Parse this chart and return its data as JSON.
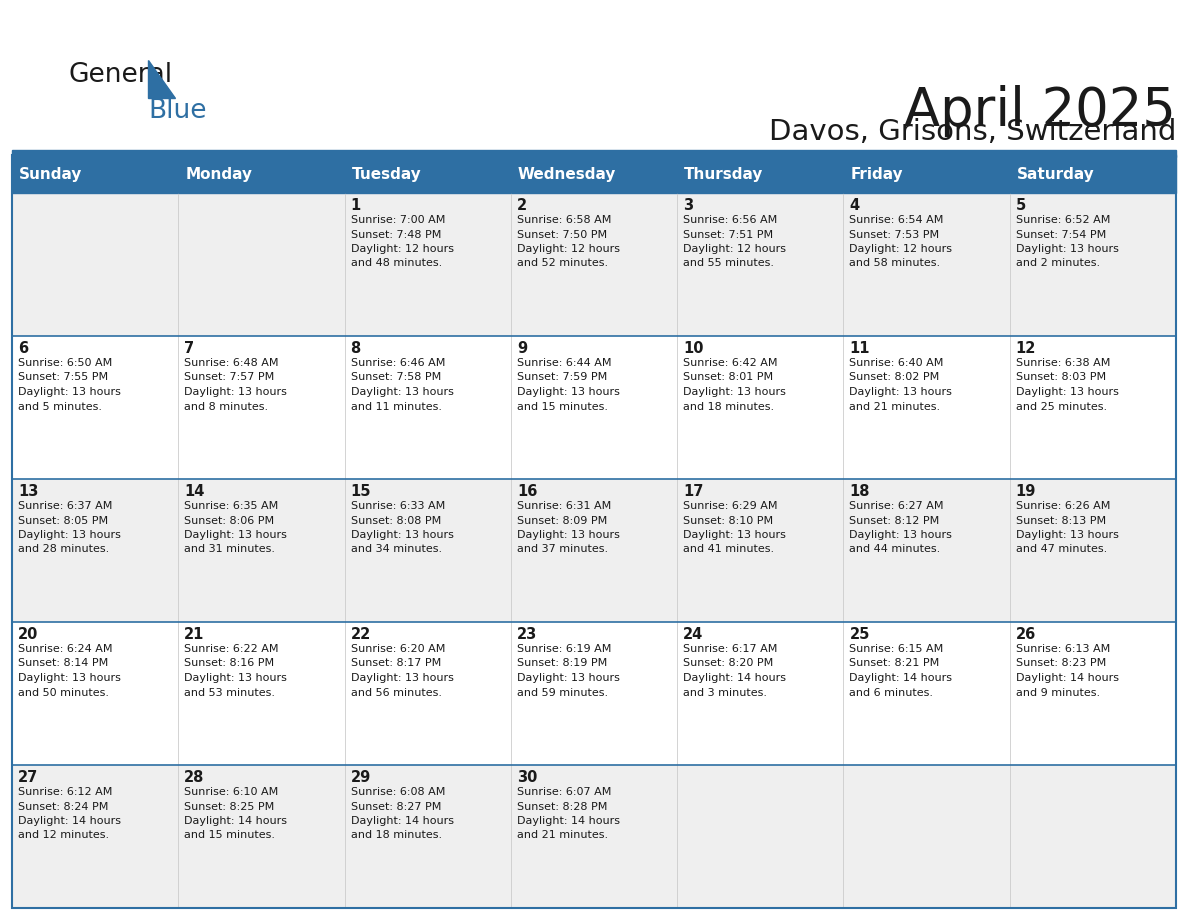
{
  "title": "April 2025",
  "subtitle": "Davos, Grisons, Switzerland",
  "header_bg_color": "#2E6FA3",
  "header_text_color": "#FFFFFF",
  "cell_bg_odd": "#EFEFEF",
  "cell_bg_even": "#FFFFFF",
  "border_color": "#2E6FA3",
  "text_color": "#1a1a1a",
  "day_headers": [
    "Sunday",
    "Monday",
    "Tuesday",
    "Wednesday",
    "Thursday",
    "Friday",
    "Saturday"
  ],
  "days": [
    {
      "day": "",
      "col": 0,
      "row": 0,
      "lines": []
    },
    {
      "day": "",
      "col": 1,
      "row": 0,
      "lines": []
    },
    {
      "day": "1",
      "col": 2,
      "row": 0,
      "lines": [
        "Sunrise: 7:00 AM",
        "Sunset: 7:48 PM",
        "Daylight: 12 hours",
        "and 48 minutes."
      ]
    },
    {
      "day": "2",
      "col": 3,
      "row": 0,
      "lines": [
        "Sunrise: 6:58 AM",
        "Sunset: 7:50 PM",
        "Daylight: 12 hours",
        "and 52 minutes."
      ]
    },
    {
      "day": "3",
      "col": 4,
      "row": 0,
      "lines": [
        "Sunrise: 6:56 AM",
        "Sunset: 7:51 PM",
        "Daylight: 12 hours",
        "and 55 minutes."
      ]
    },
    {
      "day": "4",
      "col": 5,
      "row": 0,
      "lines": [
        "Sunrise: 6:54 AM",
        "Sunset: 7:53 PM",
        "Daylight: 12 hours",
        "and 58 minutes."
      ]
    },
    {
      "day": "5",
      "col": 6,
      "row": 0,
      "lines": [
        "Sunrise: 6:52 AM",
        "Sunset: 7:54 PM",
        "Daylight: 13 hours",
        "and 2 minutes."
      ]
    },
    {
      "day": "6",
      "col": 0,
      "row": 1,
      "lines": [
        "Sunrise: 6:50 AM",
        "Sunset: 7:55 PM",
        "Daylight: 13 hours",
        "and 5 minutes."
      ]
    },
    {
      "day": "7",
      "col": 1,
      "row": 1,
      "lines": [
        "Sunrise: 6:48 AM",
        "Sunset: 7:57 PM",
        "Daylight: 13 hours",
        "and 8 minutes."
      ]
    },
    {
      "day": "8",
      "col": 2,
      "row": 1,
      "lines": [
        "Sunrise: 6:46 AM",
        "Sunset: 7:58 PM",
        "Daylight: 13 hours",
        "and 11 minutes."
      ]
    },
    {
      "day": "9",
      "col": 3,
      "row": 1,
      "lines": [
        "Sunrise: 6:44 AM",
        "Sunset: 7:59 PM",
        "Daylight: 13 hours",
        "and 15 minutes."
      ]
    },
    {
      "day": "10",
      "col": 4,
      "row": 1,
      "lines": [
        "Sunrise: 6:42 AM",
        "Sunset: 8:01 PM",
        "Daylight: 13 hours",
        "and 18 minutes."
      ]
    },
    {
      "day": "11",
      "col": 5,
      "row": 1,
      "lines": [
        "Sunrise: 6:40 AM",
        "Sunset: 8:02 PM",
        "Daylight: 13 hours",
        "and 21 minutes."
      ]
    },
    {
      "day": "12",
      "col": 6,
      "row": 1,
      "lines": [
        "Sunrise: 6:38 AM",
        "Sunset: 8:03 PM",
        "Daylight: 13 hours",
        "and 25 minutes."
      ]
    },
    {
      "day": "13",
      "col": 0,
      "row": 2,
      "lines": [
        "Sunrise: 6:37 AM",
        "Sunset: 8:05 PM",
        "Daylight: 13 hours",
        "and 28 minutes."
      ]
    },
    {
      "day": "14",
      "col": 1,
      "row": 2,
      "lines": [
        "Sunrise: 6:35 AM",
        "Sunset: 8:06 PM",
        "Daylight: 13 hours",
        "and 31 minutes."
      ]
    },
    {
      "day": "15",
      "col": 2,
      "row": 2,
      "lines": [
        "Sunrise: 6:33 AM",
        "Sunset: 8:08 PM",
        "Daylight: 13 hours",
        "and 34 minutes."
      ]
    },
    {
      "day": "16",
      "col": 3,
      "row": 2,
      "lines": [
        "Sunrise: 6:31 AM",
        "Sunset: 8:09 PM",
        "Daylight: 13 hours",
        "and 37 minutes."
      ]
    },
    {
      "day": "17",
      "col": 4,
      "row": 2,
      "lines": [
        "Sunrise: 6:29 AM",
        "Sunset: 8:10 PM",
        "Daylight: 13 hours",
        "and 41 minutes."
      ]
    },
    {
      "day": "18",
      "col": 5,
      "row": 2,
      "lines": [
        "Sunrise: 6:27 AM",
        "Sunset: 8:12 PM",
        "Daylight: 13 hours",
        "and 44 minutes."
      ]
    },
    {
      "day": "19",
      "col": 6,
      "row": 2,
      "lines": [
        "Sunrise: 6:26 AM",
        "Sunset: 8:13 PM",
        "Daylight: 13 hours",
        "and 47 minutes."
      ]
    },
    {
      "day": "20",
      "col": 0,
      "row": 3,
      "lines": [
        "Sunrise: 6:24 AM",
        "Sunset: 8:14 PM",
        "Daylight: 13 hours",
        "and 50 minutes."
      ]
    },
    {
      "day": "21",
      "col": 1,
      "row": 3,
      "lines": [
        "Sunrise: 6:22 AM",
        "Sunset: 8:16 PM",
        "Daylight: 13 hours",
        "and 53 minutes."
      ]
    },
    {
      "day": "22",
      "col": 2,
      "row": 3,
      "lines": [
        "Sunrise: 6:20 AM",
        "Sunset: 8:17 PM",
        "Daylight: 13 hours",
        "and 56 minutes."
      ]
    },
    {
      "day": "23",
      "col": 3,
      "row": 3,
      "lines": [
        "Sunrise: 6:19 AM",
        "Sunset: 8:19 PM",
        "Daylight: 13 hours",
        "and 59 minutes."
      ]
    },
    {
      "day": "24",
      "col": 4,
      "row": 3,
      "lines": [
        "Sunrise: 6:17 AM",
        "Sunset: 8:20 PM",
        "Daylight: 14 hours",
        "and 3 minutes."
      ]
    },
    {
      "day": "25",
      "col": 5,
      "row": 3,
      "lines": [
        "Sunrise: 6:15 AM",
        "Sunset: 8:21 PM",
        "Daylight: 14 hours",
        "and 6 minutes."
      ]
    },
    {
      "day": "26",
      "col": 6,
      "row": 3,
      "lines": [
        "Sunrise: 6:13 AM",
        "Sunset: 8:23 PM",
        "Daylight: 14 hours",
        "and 9 minutes."
      ]
    },
    {
      "day": "27",
      "col": 0,
      "row": 4,
      "lines": [
        "Sunrise: 6:12 AM",
        "Sunset: 8:24 PM",
        "Daylight: 14 hours",
        "and 12 minutes."
      ]
    },
    {
      "day": "28",
      "col": 1,
      "row": 4,
      "lines": [
        "Sunrise: 6:10 AM",
        "Sunset: 8:25 PM",
        "Daylight: 14 hours",
        "and 15 minutes."
      ]
    },
    {
      "day": "29",
      "col": 2,
      "row": 4,
      "lines": [
        "Sunrise: 6:08 AM",
        "Sunset: 8:27 PM",
        "Daylight: 14 hours",
        "and 18 minutes."
      ]
    },
    {
      "day": "30",
      "col": 3,
      "row": 4,
      "lines": [
        "Sunrise: 6:07 AM",
        "Sunset: 8:28 PM",
        "Daylight: 14 hours",
        "and 21 minutes."
      ]
    },
    {
      "day": "",
      "col": 4,
      "row": 4,
      "lines": []
    },
    {
      "day": "",
      "col": 5,
      "row": 4,
      "lines": []
    },
    {
      "day": "",
      "col": 6,
      "row": 4,
      "lines": []
    }
  ]
}
